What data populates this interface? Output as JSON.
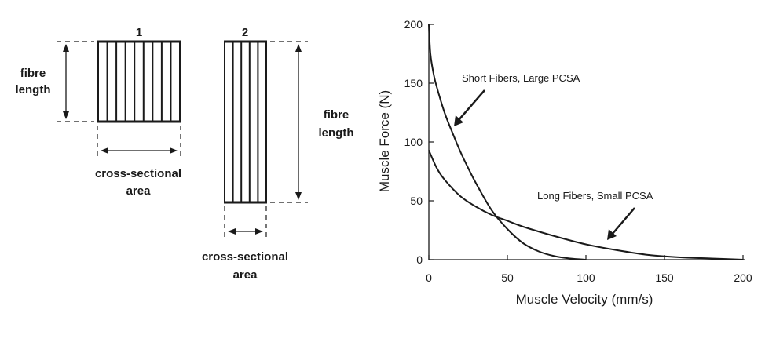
{
  "muscle_1": {
    "number": "1",
    "fibre_length_label": [
      "fibre",
      "length"
    ],
    "area_label": [
      "cross-sectional",
      "area"
    ]
  },
  "muscle_2": {
    "number": "2",
    "fibre_length_label": [
      "fibre",
      "length"
    ],
    "area_label": [
      "cross-sectional",
      "area"
    ]
  },
  "chart_data": {
    "type": "line",
    "title": "",
    "xlabel": "Muscle Velocity (mm/s)",
    "ylabel": "Muscle Force (N)",
    "xlim": [
      0,
      200
    ],
    "ylim": [
      0,
      200
    ],
    "xticks": [
      0,
      50,
      100,
      150,
      200
    ],
    "yticks": [
      0,
      50,
      100,
      150,
      200
    ],
    "grid": false,
    "annotations": [
      {
        "text": "Short Fibers, Large PCSA",
        "series": "short"
      },
      {
        "text": "Long Fibers, Small PCSA",
        "series": "long"
      }
    ],
    "series": [
      {
        "id": "short",
        "x": [
          0,
          1,
          3,
          5,
          10,
          15,
          20,
          25,
          30,
          40,
          50,
          60,
          70,
          80,
          90,
          100
        ],
        "values": [
          200,
          175,
          158,
          147,
          125,
          108,
          92,
          78,
          65,
          42,
          26,
          14,
          7,
          3,
          1,
          0
        ]
      },
      {
        "id": "long",
        "x": [
          0,
          5,
          10,
          20,
          30,
          40,
          50,
          60,
          80,
          100,
          120,
          140,
          160,
          180,
          200
        ],
        "values": [
          93,
          78,
          68,
          54,
          45,
          38,
          33,
          28,
          20,
          13,
          8,
          4,
          2,
          1,
          0
        ]
      }
    ]
  }
}
